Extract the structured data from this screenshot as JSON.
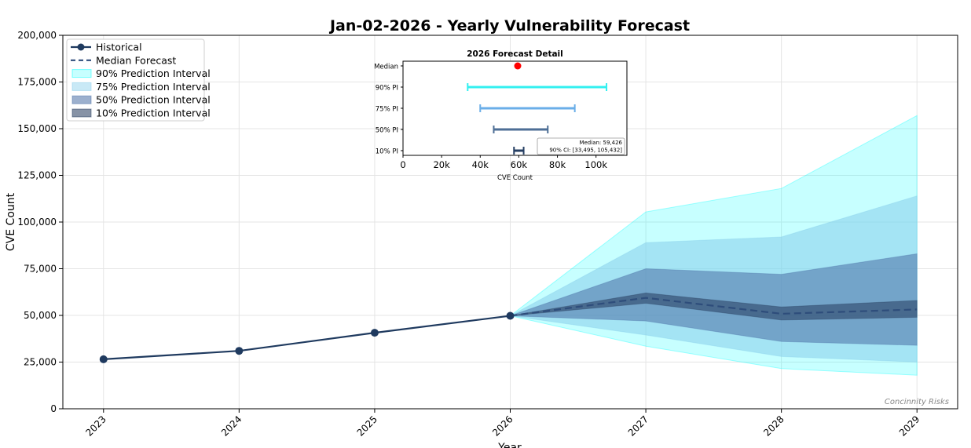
{
  "chart_data": {
    "type": "area",
    "title": "Jan-02-2026 - Yearly Vulnerability Forecast",
    "xlabel": "Year",
    "ylabel": "CVE Count",
    "xlim": [
      2022.7,
      2029.3
    ],
    "ylim": [
      0,
      200000
    ],
    "x_ticks": [
      "2023",
      "2024",
      "2025",
      "2026",
      "2027",
      "2028",
      "2029"
    ],
    "y_ticks": [
      "0",
      "25,000",
      "50,000",
      "75,000",
      "100,000",
      "125,000",
      "150,000",
      "175,000",
      "200,000"
    ],
    "grid": true,
    "legend": {
      "placement": "top-left",
      "entries": [
        "Historical",
        "Median Forecast",
        "90% Prediction Interval",
        "75% Prediction Interval",
        "50% Prediction Interval",
        "10% Prediction Interval"
      ]
    },
    "historical": {
      "x": [
        2023,
        2024,
        2025,
        2026
      ],
      "y": [
        26500,
        31000,
        40700,
        49800
      ]
    },
    "forecast": {
      "x": [
        2026,
        2027,
        2028,
        2029
      ],
      "median": [
        49800,
        59400,
        50900,
        53200
      ],
      "pi90": {
        "lower": [
          49800,
          33500,
          21500,
          18000
        ],
        "upper": [
          49800,
          105400,
          118000,
          157000
        ]
      },
      "pi75": {
        "lower": [
          49800,
          39500,
          28000,
          25000
        ],
        "upper": [
          49800,
          89000,
          92000,
          114000
        ]
      },
      "pi50": {
        "lower": [
          49800,
          47000,
          36000,
          34000
        ],
        "upper": [
          49800,
          75000,
          72000,
          83000
        ]
      },
      "pi10": {
        "lower": [
          49800,
          56500,
          47500,
          49000
        ],
        "upper": [
          49800,
          62000,
          54500,
          58000
        ]
      }
    },
    "colors": {
      "historical": "#1f3a5f",
      "median": "#2e4d7b",
      "pi90": "#00ffff",
      "pi75": "#87ceeb",
      "pi50": "#4a6fa5",
      "pi10": "#243b5c",
      "pi90_bar": "#33f0f0",
      "pi75_bar": "#6aaee8",
      "pi50_bar": "#4d6e96",
      "pi10_bar": "#263f63",
      "median_dot": "#ff0000"
    },
    "watermark": "Concinnity Risks",
    "inset": {
      "title": "2026 Forecast Detail",
      "xlabel": "CVE Count",
      "xlim": [
        0,
        116000
      ],
      "x_ticks": [
        0,
        20000,
        40000,
        60000,
        80000,
        100000
      ],
      "x_tick_labels": [
        "0",
        "20k",
        "40k",
        "60k",
        "80k",
        "100k"
      ],
      "rows": [
        {
          "label": "Median",
          "type": "point",
          "value": 59426
        },
        {
          "label": "90% PI",
          "type": "interval",
          "lower": 33495,
          "upper": 105432
        },
        {
          "label": "75% PI",
          "type": "interval",
          "lower": 40000,
          "upper": 89000
        },
        {
          "label": "50% PI",
          "type": "interval",
          "lower": 47000,
          "upper": 75000
        },
        {
          "label": "10% PI",
          "type": "interval",
          "lower": 57500,
          "upper": 62500
        }
      ],
      "annotation": [
        "Median: 59,426",
        "90% CI: [33,495, 105,432]"
      ]
    }
  }
}
